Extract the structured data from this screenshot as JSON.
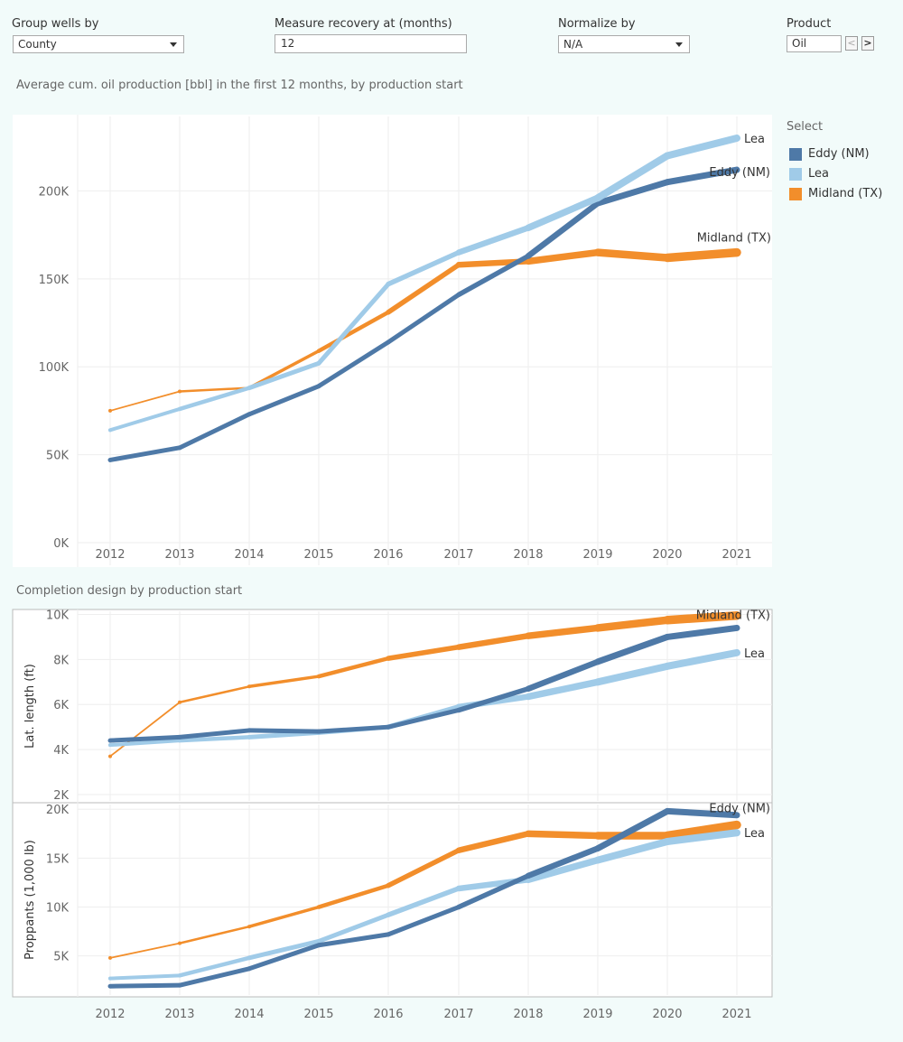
{
  "controls": {
    "group_by": {
      "label": "Group wells by",
      "value": "County"
    },
    "measure": {
      "label": "Measure recovery at (months)",
      "value": "12"
    },
    "normalize": {
      "label": "Normalize by",
      "value": "N/A"
    },
    "product": {
      "label": "Product",
      "value": "Oil",
      "prev": "<",
      "next": ">"
    }
  },
  "legend": {
    "title": "Select",
    "items": [
      {
        "label": "Eddy (NM)",
        "color": "#4e79a7"
      },
      {
        "label": "Lea",
        "color": "#a0cbe8"
      },
      {
        "label": "Midland (TX)",
        "color": "#f28e2b"
      }
    ]
  },
  "titles": {
    "top": "Average cum. oil production [bbl] in the first 12 months, by production start",
    "bottom": "Completion design by production start"
  },
  "colors": {
    "eddy": "#4e79a7",
    "lea": "#a0cbe8",
    "midland": "#f28e2b"
  },
  "chart_data": [
    {
      "type": "line",
      "x": [
        2012,
        2013,
        2014,
        2015,
        2016,
        2017,
        2018,
        2019,
        2020,
        2021
      ],
      "ylim": [
        0,
        230000
      ],
      "yticks": [
        "0K",
        "50K",
        "100K",
        "150K",
        "200K"
      ],
      "yticks_values": [
        0,
        50000,
        100000,
        150000,
        200000
      ],
      "xticks": [
        "2012",
        "2013",
        "2014",
        "2015",
        "2016",
        "2017",
        "2018",
        "2019",
        "2020",
        "2021"
      ],
      "ylabel": "",
      "series": [
        {
          "name": "Midland (TX)",
          "key": "midland",
          "end_label": "Midland (TX)",
          "values": [
            75000,
            86000,
            88000,
            109000,
            131000,
            158000,
            160000,
            165000,
            162000,
            165000
          ]
        },
        {
          "name": "Eddy (NM)",
          "key": "eddy",
          "end_label": "Eddy (NM)",
          "values": [
            47000,
            54000,
            73000,
            89000,
            114000,
            141000,
            163000,
            193000,
            205000,
            212000
          ]
        },
        {
          "name": "Lea",
          "key": "lea",
          "end_label": "Lea",
          "values": [
            64000,
            76000,
            88000,
            102000,
            147000,
            165000,
            179000,
            196000,
            220000,
            230000
          ]
        }
      ]
    },
    {
      "type": "line",
      "x": [
        2012,
        2013,
        2014,
        2015,
        2016,
        2017,
        2018,
        2019,
        2020,
        2021
      ],
      "ylim": [
        1800,
        10300
      ],
      "yticks": [
        "2K",
        "4K",
        "6K",
        "8K",
        "10K"
      ],
      "yticks_values": [
        2000,
        4000,
        6000,
        8000,
        10000
      ],
      "ylabel": "Lat. length (ft)",
      "series": [
        {
          "name": "Midland (TX)",
          "key": "midland",
          "end_label": "Midland (TX)",
          "values": [
            3700,
            6100,
            6800,
            7250,
            8050,
            8550,
            9050,
            9400,
            9750,
            9950
          ]
        },
        {
          "name": "Lea",
          "key": "lea",
          "end_label": "Lea",
          "values": [
            4200,
            4400,
            4550,
            4750,
            5000,
            5900,
            6350,
            7000,
            7700,
            8300
          ]
        },
        {
          "name": "Eddy (NM)",
          "key": "eddy",
          "end_label": "",
          "values": [
            4400,
            4550,
            4850,
            4800,
            5000,
            5750,
            6700,
            7900,
            9000,
            9400
          ]
        }
      ]
    },
    {
      "type": "line",
      "x": [
        2012,
        2013,
        2014,
        2015,
        2016,
        2017,
        2018,
        2019,
        2020,
        2021
      ],
      "ylim": [
        1000,
        20300
      ],
      "yticks": [
        "5K",
        "10K",
        "15K",
        "20K"
      ],
      "yticks_values": [
        5000,
        10000,
        15000,
        20000
      ],
      "xticks": [
        "2012",
        "2013",
        "2014",
        "2015",
        "2016",
        "2017",
        "2018",
        "2019",
        "2020",
        "2021"
      ],
      "ylabel": "Proppants (1,000 lb)",
      "series": [
        {
          "name": "Midland (TX)",
          "key": "midland",
          "end_label": "",
          "values": [
            4800,
            6300,
            8000,
            10000,
            12200,
            15800,
            17500,
            17300,
            17300,
            18400
          ]
        },
        {
          "name": "Lea",
          "key": "lea",
          "end_label": "Lea",
          "values": [
            2700,
            3000,
            4800,
            6500,
            9200,
            11900,
            12800,
            14800,
            16700,
            17600
          ]
        },
        {
          "name": "Eddy (NM)",
          "key": "eddy",
          "end_label": "Eddy (NM)",
          "values": [
            1900,
            2000,
            3700,
            6100,
            7200,
            10000,
            13200,
            16000,
            19800,
            19400
          ]
        }
      ]
    }
  ]
}
